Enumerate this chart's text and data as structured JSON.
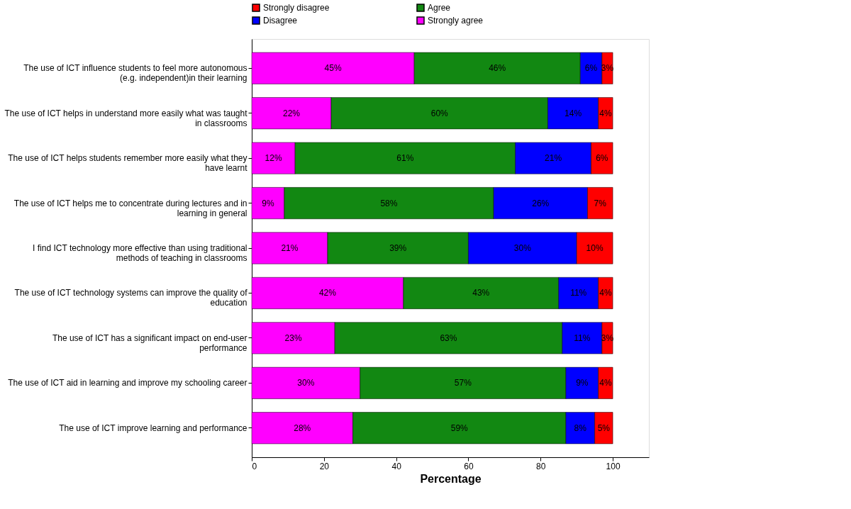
{
  "chart_data": {
    "type": "bar",
    "orientation": "horizontal",
    "stacked": true,
    "xlabel": "Percentage",
    "categories": [
      "The use of ICT influence students to feel more autonomous (e.g. independent)in their learning",
      "The use of ICT helps in understand more easily what was taught in classrooms",
      "The use of ICT helps students remember more easily what they have learnt",
      "The use of ICT helps me to concentrate during lectures and in learning in general",
      "I find ICT technology more effective than using traditional methods of teaching in classrooms",
      "The use of ICT technology systems can improve the quality of education",
      "The use of ICT has a significant impact on end-user performance",
      "The use of ICT aid in learning and improve my schooling career",
      "The use of ICT improve learning and performance"
    ],
    "series": [
      {
        "name": "Strongly agree",
        "color": "#ff00ff",
        "values": [
          45,
          22,
          12,
          9,
          21,
          42,
          23,
          30,
          28
        ],
        "value_labels": [
          "45%",
          "22%",
          "12%",
          "9%",
          "21%",
          "42%",
          "23%",
          "30%",
          "28%"
        ]
      },
      {
        "name": "Agree",
        "color": "#128812",
        "values": [
          46,
          60,
          61,
          58,
          39,
          43,
          63,
          57,
          59
        ],
        "value_labels": [
          "46%",
          "60%",
          "61%",
          "58%",
          "39%",
          "43%",
          "63%",
          "57%",
          "59%"
        ]
      },
      {
        "name": "Disagree",
        "color": "#0000ff",
        "values": [
          6,
          14,
          21,
          26,
          30,
          11,
          11,
          9,
          8
        ],
        "value_labels": [
          "6%",
          "14%",
          "21%",
          "26%",
          "30%",
          "11%",
          "11%",
          "9%",
          "8%"
        ]
      },
      {
        "name": "Strongly disagree",
        "color": "#ff0000",
        "values": [
          3,
          4,
          6,
          7,
          10,
          4,
          3,
          4,
          5
        ],
        "value_labels": [
          "3%",
          "4%",
          "6%",
          "7%",
          "10%",
          "4%",
          "3%",
          "4%",
          "5%"
        ]
      }
    ],
    "xlim": [
      0,
      110
    ],
    "xticks": [
      0,
      20,
      40,
      60,
      80,
      100
    ],
    "legend": "top",
    "grid": false
  }
}
